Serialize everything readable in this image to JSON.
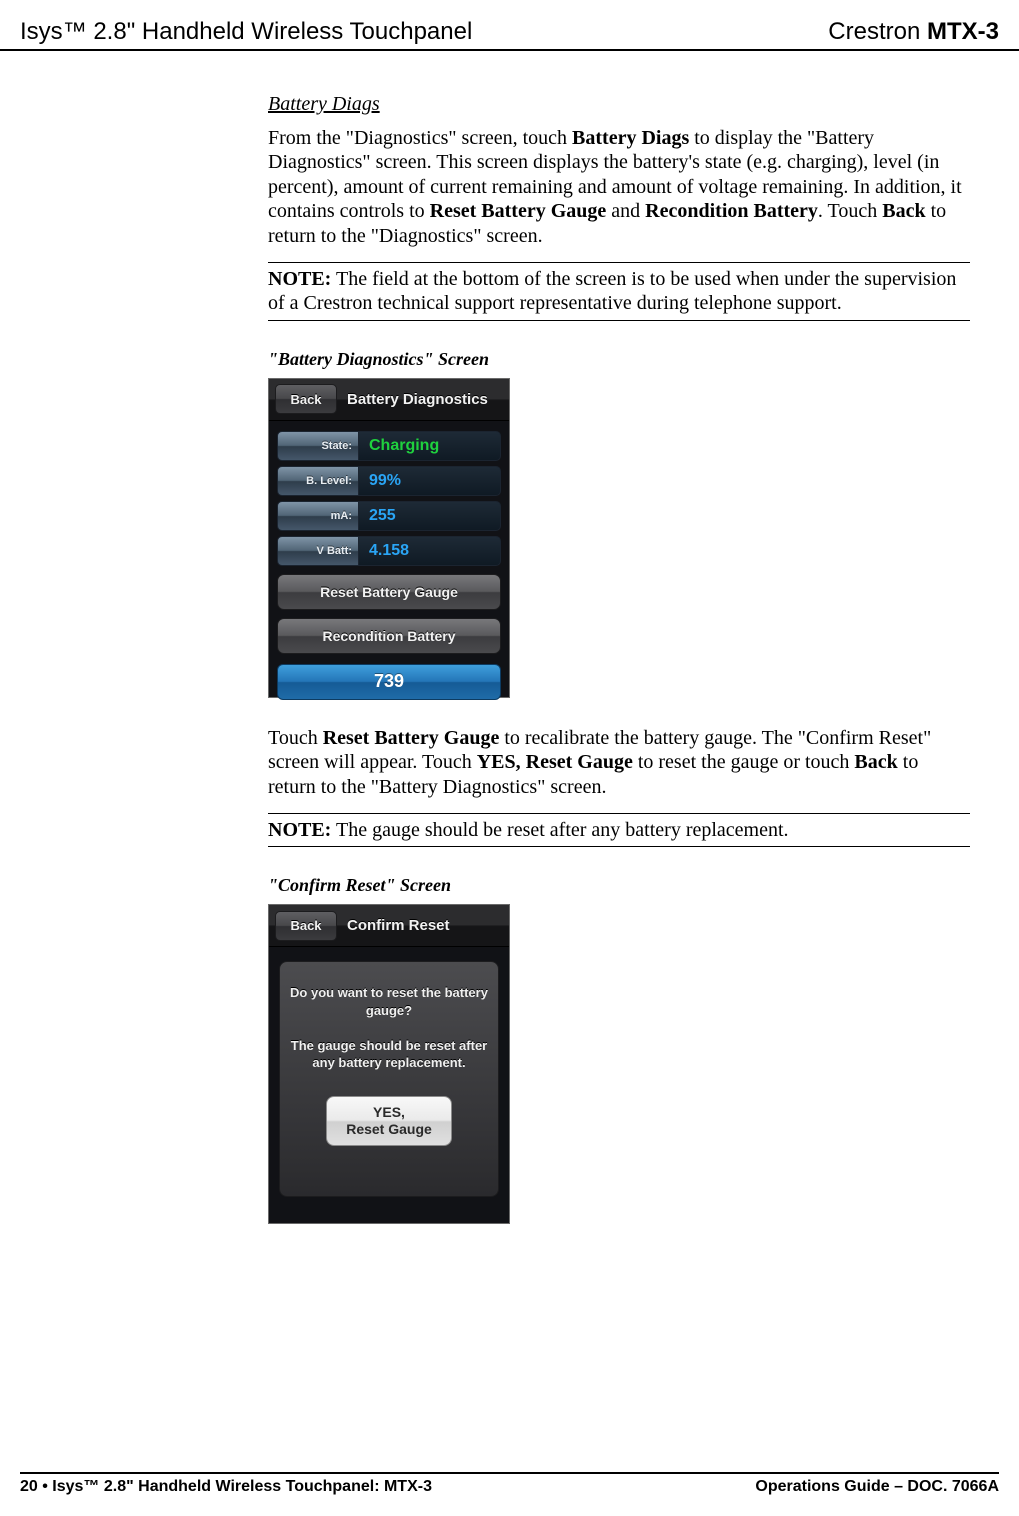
{
  "header": {
    "left": "Isys™ 2.8\" Handheld Wireless Touchpanel",
    "right_prefix": "Crestron ",
    "right_bold": "MTX-3"
  },
  "section1": {
    "title": "Battery Diags",
    "para": "From the \"Diagnostics\" screen, touch <b>Battery Diags</b> to display the \"Battery Diagnostics\" screen. This screen displays the battery's state (e.g. charging), level (in percent), amount of current remaining and amount of voltage remaining. In addition, it contains controls to <b>Reset Battery Gauge</b> and <b>Recondition Battery</b>. Touch <b>Back</b> to return to the \"Diagnostics\" screen.",
    "note": "<b>NOTE:</b>  The field at the bottom of the screen is to be used when under the supervision of a Crestron technical support representative during telephone support."
  },
  "fig1": {
    "caption": "\"Battery Diagnostics\" Screen",
    "back_label": "Back",
    "title": "Battery Diagnostics",
    "rows": [
      {
        "label": "State:",
        "value": "Charging",
        "green": true
      },
      {
        "label": "B. Level:",
        "value": "99%",
        "green": false
      },
      {
        "label": "mA:",
        "value": "255",
        "green": false
      },
      {
        "label": "V Batt:",
        "value": "4.158",
        "green": false
      }
    ],
    "btn1": "Reset Battery Gauge",
    "btn2": "Recondition Battery",
    "bottom_value": "739",
    "colors": {
      "background": "#111216",
      "titlebar_top": "#2c2c2e",
      "titlebar_bottom": "#151517",
      "label_bg_top": "#7f94a7",
      "label_bg_bottom": "#45576a",
      "value_bg_top": "#1e2a36",
      "value_bg_bottom": "#0f1a24",
      "value_color": "#2aa5f5",
      "value_green": "#1fd13e",
      "btn_bg_top": "#78787b",
      "btn_bg_bottom": "#4a4a4d",
      "bottom_bg_top": "#3f9fdc",
      "bottom_bg_bottom": "#1f6ba8"
    }
  },
  "section2": {
    "para": "Touch <b>Reset Battery Gauge</b> to recalibrate the battery gauge. The \"Confirm Reset\" screen will appear. Touch <b>YES, Reset Gauge</b> to reset the gauge or touch <b>Back</b> to return to the \"Battery Diagnostics\" screen.",
    "note": "<b>NOTE:</b>  The gauge should be reset after any battery replacement."
  },
  "fig2": {
    "caption": "\"Confirm Reset\" Screen",
    "back_label": "Back",
    "title": "Confirm Reset",
    "msg1": "Do you want to reset the battery gauge?",
    "msg2": "The gauge should be reset after any battery replacement.",
    "yes_line1": "YES,",
    "yes_line2": "Reset Gauge",
    "colors": {
      "panel_top": "#4c4c4f",
      "panel_bottom": "#2a2a2d",
      "yes_bg_top": "#f8f8f8",
      "yes_bg_bottom": "#e0e0e0"
    }
  },
  "footer": {
    "left": "20  •  Isys™ 2.8\" Handheld Wireless Touchpanel: MTX-3",
    "right": "Operations Guide – DOC. 7066A"
  }
}
